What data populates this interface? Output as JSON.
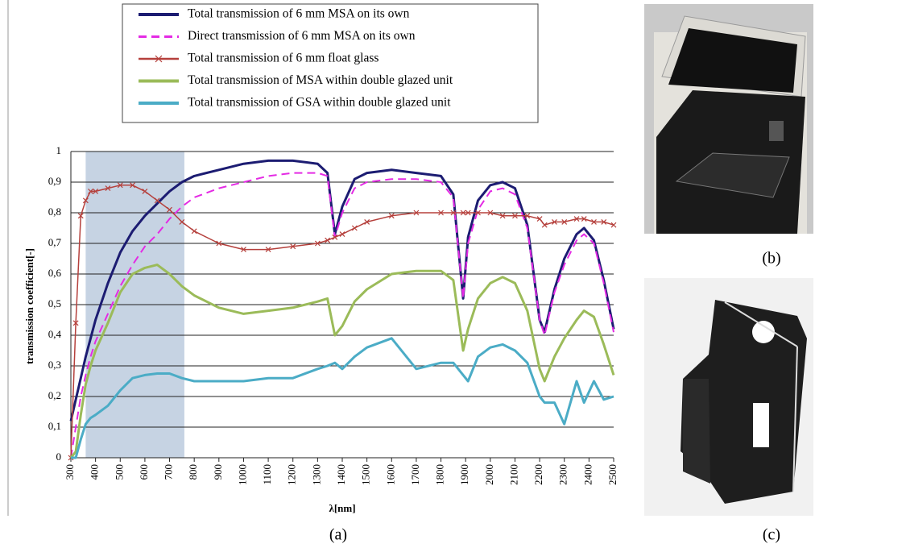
{
  "chart_data": {
    "type": "line",
    "x_label": "λ[nm]",
    "y_label": "transmission  coefficient[-]",
    "xlim": [
      300,
      2500
    ],
    "ylim": [
      0,
      1
    ],
    "xticks": [
      300,
      400,
      500,
      600,
      700,
      800,
      900,
      1000,
      1100,
      1200,
      1300,
      1400,
      1500,
      1600,
      1700,
      1800,
      1900,
      2000,
      2100,
      2200,
      2300,
      2400,
      2500
    ],
    "yticks": [
      0,
      {
        "value": 0.1,
        "label": "0,1"
      },
      {
        "value": 0.2,
        "label": "0,2"
      },
      {
        "value": 0.3,
        "label": "0,3"
      },
      {
        "value": 0.4,
        "label": "0,4"
      },
      {
        "value": 0.5,
        "label": "0,5"
      },
      {
        "value": 0.6,
        "label": "0,6"
      },
      {
        "value": 0.7,
        "label": "0,7"
      },
      {
        "value": 0.8,
        "label": "0,8"
      },
      {
        "value": 0.9,
        "label": "0,9"
      },
      1
    ],
    "grid": true,
    "shaded_range": [
      360,
      760
    ],
    "shaded_color": "#c6d3e3",
    "x": [
      300,
      320,
      340,
      360,
      380,
      400,
      450,
      500,
      550,
      600,
      650,
      700,
      750,
      800,
      900,
      1000,
      1100,
      1200,
      1300,
      1340,
      1370,
      1400,
      1450,
      1500,
      1600,
      1700,
      1800,
      1850,
      1890,
      1910,
      1950,
      2000,
      2050,
      2100,
      2150,
      2200,
      2220,
      2260,
      2300,
      2350,
      2380,
      2420,
      2460,
      2500
    ],
    "series": [
      {
        "name": "Total transmission of 6 mm MSA on its own",
        "color": "#1c1c72",
        "width": 3,
        "values": [
          0.12,
          0.19,
          0.26,
          0.33,
          0.39,
          0.45,
          0.57,
          0.67,
          0.74,
          0.79,
          0.83,
          0.87,
          0.9,
          0.92,
          0.94,
          0.96,
          0.97,
          0.97,
          0.96,
          0.93,
          0.73,
          0.82,
          0.91,
          0.93,
          0.94,
          0.93,
          0.92,
          0.86,
          0.52,
          0.72,
          0.84,
          0.89,
          0.9,
          0.88,
          0.76,
          0.45,
          0.41,
          0.55,
          0.65,
          0.73,
          0.75,
          0.71,
          0.58,
          0.42
        ]
      },
      {
        "name": "Direct  transmission of 6 mm MSA on its own",
        "color": "#e42be4",
        "width": 2,
        "dashed": true,
        "values": [
          0,
          0.1,
          0.2,
          0.27,
          0.33,
          0.38,
          0.47,
          0.56,
          0.63,
          0.69,
          0.73,
          0.78,
          0.82,
          0.85,
          0.88,
          0.9,
          0.92,
          0.93,
          0.93,
          0.92,
          0.72,
          0.8,
          0.88,
          0.9,
          0.91,
          0.91,
          0.9,
          0.85,
          0.52,
          0.7,
          0.81,
          0.87,
          0.88,
          0.86,
          0.75,
          0.45,
          0.4,
          0.54,
          0.63,
          0.71,
          0.73,
          0.7,
          0.57,
          0.41
        ]
      },
      {
        "name": "Total transmission of 6 mm float glass",
        "color": "#b5403c",
        "width": 1.5,
        "marker": "x",
        "values": [
          0,
          0.44,
          0.79,
          0.84,
          0.87,
          0.87,
          0.88,
          0.89,
          0.89,
          0.87,
          0.84,
          0.81,
          0.77,
          0.74,
          0.7,
          0.68,
          0.68,
          0.69,
          0.7,
          0.71,
          0.72,
          0.73,
          0.75,
          0.77,
          0.79,
          0.8,
          0.8,
          0.8,
          0.8,
          0.8,
          0.8,
          0.8,
          0.79,
          0.79,
          0.79,
          0.78,
          0.76,
          0.77,
          0.77,
          0.78,
          0.78,
          0.77,
          0.77,
          0.76
        ]
      },
      {
        "name": "Total transmission of MSA within double glazed unit",
        "color": "#9bbb59",
        "width": 3,
        "values": [
          0,
          0.02,
          0.14,
          0.24,
          0.3,
          0.35,
          0.44,
          0.54,
          0.6,
          0.62,
          0.63,
          0.6,
          0.56,
          0.53,
          0.49,
          0.47,
          0.48,
          0.49,
          0.51,
          0.52,
          0.4,
          0.43,
          0.51,
          0.55,
          0.6,
          0.61,
          0.61,
          0.58,
          0.35,
          0.42,
          0.52,
          0.57,
          0.59,
          0.57,
          0.48,
          0.29,
          0.25,
          0.33,
          0.39,
          0.45,
          0.48,
          0.46,
          0.37,
          0.27
        ]
      },
      {
        "name": "Total transmission of GSA within double glazed unit",
        "color": "#4bacc6",
        "width": 3,
        "values": [
          0,
          0,
          0.06,
          0.11,
          0.13,
          0.14,
          0.17,
          0.22,
          0.26,
          0.27,
          0.275,
          0.275,
          0.26,
          0.25,
          0.25,
          0.25,
          0.26,
          0.26,
          0.29,
          0.3,
          0.31,
          0.29,
          0.33,
          0.36,
          0.39,
          0.29,
          0.31,
          0.31,
          0.27,
          0.25,
          0.33,
          0.36,
          0.37,
          0.35,
          0.31,
          0.2,
          0.18,
          0.18,
          0.11,
          0.25,
          0.18,
          0.25,
          0.19,
          0.2
        ]
      }
    ]
  },
  "panel_labels": [
    "(a)",
    "(b)",
    "(c)"
  ]
}
